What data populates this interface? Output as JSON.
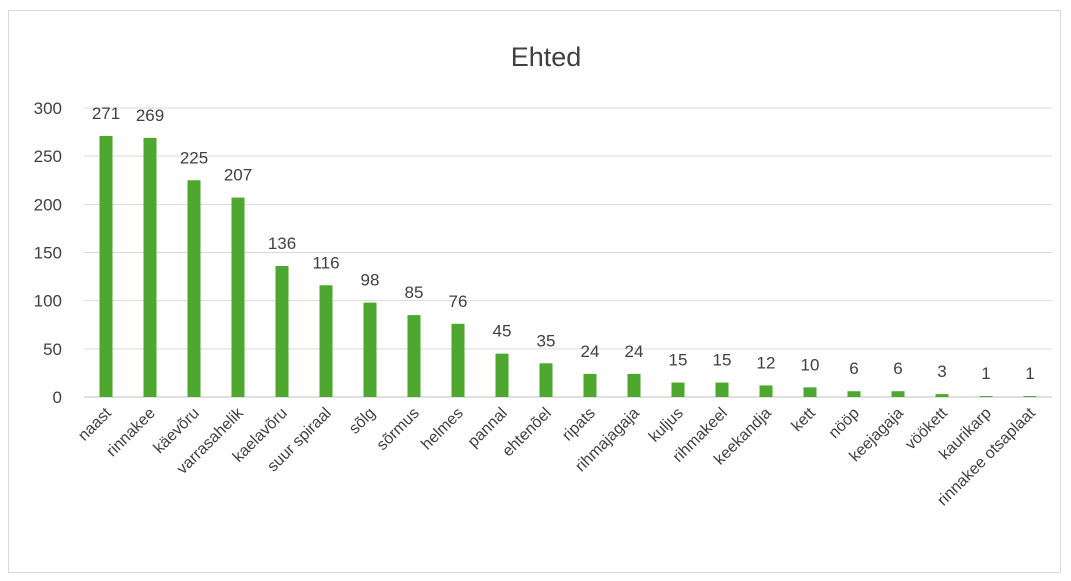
{
  "chart_data": {
    "type": "bar",
    "title": "Ehted",
    "xlabel": "",
    "ylabel": "",
    "ylim": [
      0,
      300
    ],
    "yticks": [
      0,
      50,
      100,
      150,
      200,
      250,
      300
    ],
    "grid": true,
    "legend": "none",
    "bar_color": "#4ea72e",
    "categories": [
      "naast",
      "rinnakee",
      "käevõru",
      "varrasahelik",
      "kaelavõru",
      "suur spiraal",
      "sõlg",
      "sõrmus",
      "helmes",
      "pannal",
      "ehtenõel",
      "ripats",
      "rihmajagaja",
      "kuljus",
      "rihmakeel",
      "keekandja",
      "kett",
      "nööp",
      "keejagaja",
      "vöökett",
      "kaurikarp",
      "rinnakee otsaplaat"
    ],
    "values": [
      271,
      269,
      225,
      207,
      136,
      116,
      98,
      85,
      76,
      45,
      35,
      24,
      24,
      15,
      15,
      12,
      10,
      6,
      6,
      3,
      1,
      1
    ]
  }
}
